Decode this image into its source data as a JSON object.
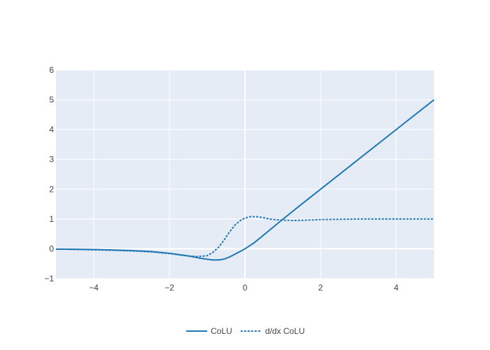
{
  "colors": {
    "plot_bg": "#e5ecf6",
    "grid": "#ffffff",
    "line": "#1f77b4",
    "text": "#444444"
  },
  "chart_data": {
    "type": "line",
    "title": "",
    "xlabel": "",
    "ylabel": "",
    "xlim": [
      -5,
      5
    ],
    "ylim": [
      -1,
      6
    ],
    "xticks": [
      -4,
      -2,
      0,
      2,
      4
    ],
    "xtick_labels": [
      "−4",
      "−2",
      "0",
      "2",
      "4"
    ],
    "yticks": [
      -1,
      0,
      1,
      2,
      3,
      4,
      5,
      6
    ],
    "ytick_labels": [
      "−1",
      "0",
      "1",
      "2",
      "3",
      "4",
      "5",
      "6"
    ],
    "grid": true,
    "legend_position": "bottom-center",
    "series": [
      {
        "name": "CoLU",
        "dash": "solid",
        "x": [
          -5,
          -4.5,
          -4,
          -3.5,
          -3,
          -2.5,
          -2,
          -1.5,
          -1.25,
          -1,
          -0.85,
          -0.7,
          -0.55,
          -0.4,
          -0.25,
          -0.1,
          0,
          0.25,
          0.5,
          1,
          1.5,
          2,
          3,
          4,
          5
        ],
        "y": [
          -0.01,
          -0.015,
          -0.025,
          -0.04,
          -0.06,
          -0.09,
          -0.15,
          -0.24,
          -0.3,
          -0.35,
          -0.375,
          -0.375,
          -0.345,
          -0.27,
          -0.17,
          -0.07,
          0.0,
          0.21,
          0.47,
          0.99,
          1.5,
          2.0,
          3.0,
          4.0,
          5.0
        ]
      },
      {
        "name": "d/dx CoLU",
        "dash": "dot",
        "x": [
          -5,
          -4.5,
          -4,
          -3.5,
          -3,
          -2.5,
          -2,
          -1.5,
          -1.25,
          -1,
          -0.85,
          -0.7,
          -0.55,
          -0.4,
          -0.25,
          -0.1,
          0,
          0.15,
          0.3,
          0.5,
          0.7,
          1,
          1.3,
          1.6,
          2,
          2.5,
          3,
          4,
          5
        ],
        "y": [
          -0.01,
          -0.02,
          -0.035,
          -0.05,
          -0.07,
          -0.1,
          -0.16,
          -0.24,
          -0.26,
          -0.23,
          -0.12,
          0.05,
          0.3,
          0.58,
          0.82,
          0.97,
          1.03,
          1.08,
          1.08,
          1.04,
          0.99,
          0.96,
          0.95,
          0.96,
          0.98,
          0.99,
          1.0,
          1.0,
          1.0
        ]
      }
    ]
  }
}
